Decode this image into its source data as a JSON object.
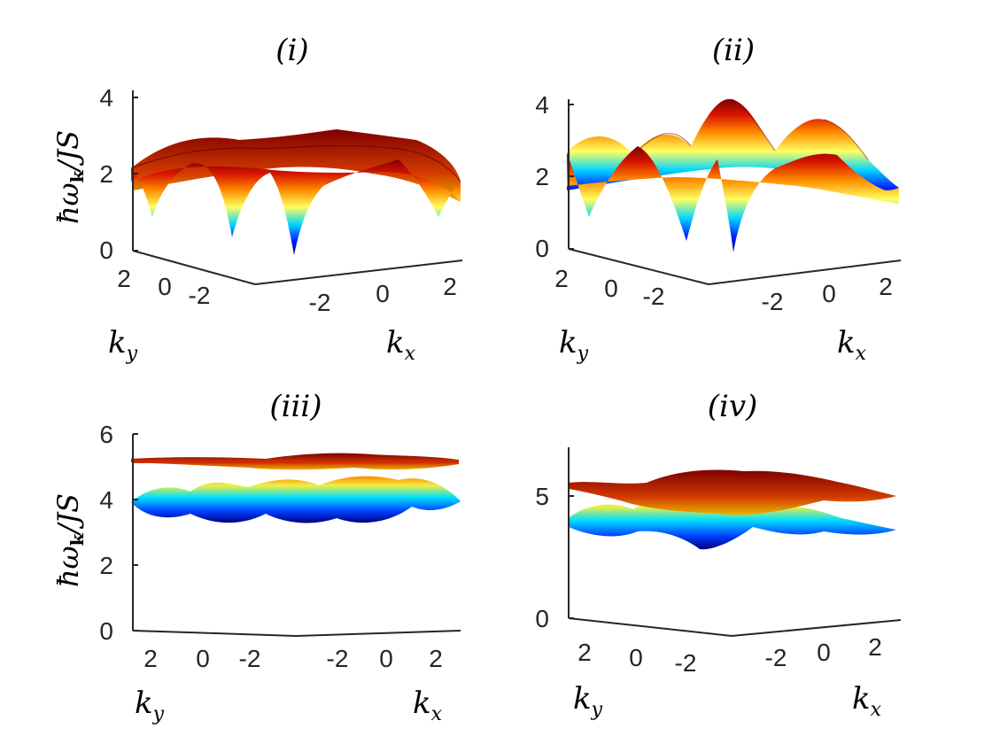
{
  "chart_data": [
    {
      "type": "surface",
      "title": "(i)",
      "zlabel": "ħω_k/JS",
      "zlabel_parts": {
        "hbar": "ħ",
        "omega": "ω",
        "sub": "k",
        "rest": "/JS"
      },
      "xlabel": "k",
      "xlabel_sub": "x",
      "ylabel": "k",
      "ylabel_sub": "y",
      "zlim": [
        0,
        4
      ],
      "zticks": [
        "0",
        "2",
        "4"
      ],
      "xticks": [
        "-2",
        "0",
        "2"
      ],
      "yticks": [
        "2",
        "0",
        "-2"
      ],
      "z_range_observed": [
        0,
        3.1
      ],
      "colormap": "jet"
    },
    {
      "type": "surface",
      "title": "(ii)",
      "xlabel": "k",
      "xlabel_sub": "x",
      "ylabel": "k",
      "ylabel_sub": "y",
      "zlim": [
        0,
        4
      ],
      "zticks": [
        "0",
        "2",
        "4"
      ],
      "xticks": [
        "-2",
        "0",
        "2"
      ],
      "yticks": [
        "2",
        "0",
        "-2"
      ],
      "z_range_observed": [
        0,
        4
      ],
      "colormap": "jet"
    },
    {
      "type": "surface",
      "title": "(iii)",
      "zlabel": "ħω_k/JS",
      "zlabel_parts": {
        "hbar": "ħ",
        "omega": "ω",
        "sub": "k",
        "rest": "/JS"
      },
      "xlabel": "k",
      "xlabel_sub": "x",
      "ylabel": "k",
      "ylabel_sub": "y",
      "zlim": [
        0,
        6
      ],
      "zticks": [
        "0",
        "2",
        "4",
        "6"
      ],
      "xticks": [
        "-2",
        "0",
        "2"
      ],
      "yticks": [
        "2",
        "0",
        "-2"
      ],
      "z_range_observed": [
        3.3,
        5.3
      ],
      "colormap": "jet"
    },
    {
      "type": "surface",
      "title": "(iv)",
      "xlabel": "k",
      "xlabel_sub": "x",
      "ylabel": "k",
      "ylabel_sub": "y",
      "zlim": [
        0,
        7
      ],
      "zticks": [
        "0",
        "5"
      ],
      "xticks": [
        "-2",
        "0",
        "2"
      ],
      "yticks": [
        "2",
        "0",
        "-2"
      ],
      "z_range_observed": [
        3.5,
        6.0
      ],
      "colormap": "jet"
    }
  ]
}
